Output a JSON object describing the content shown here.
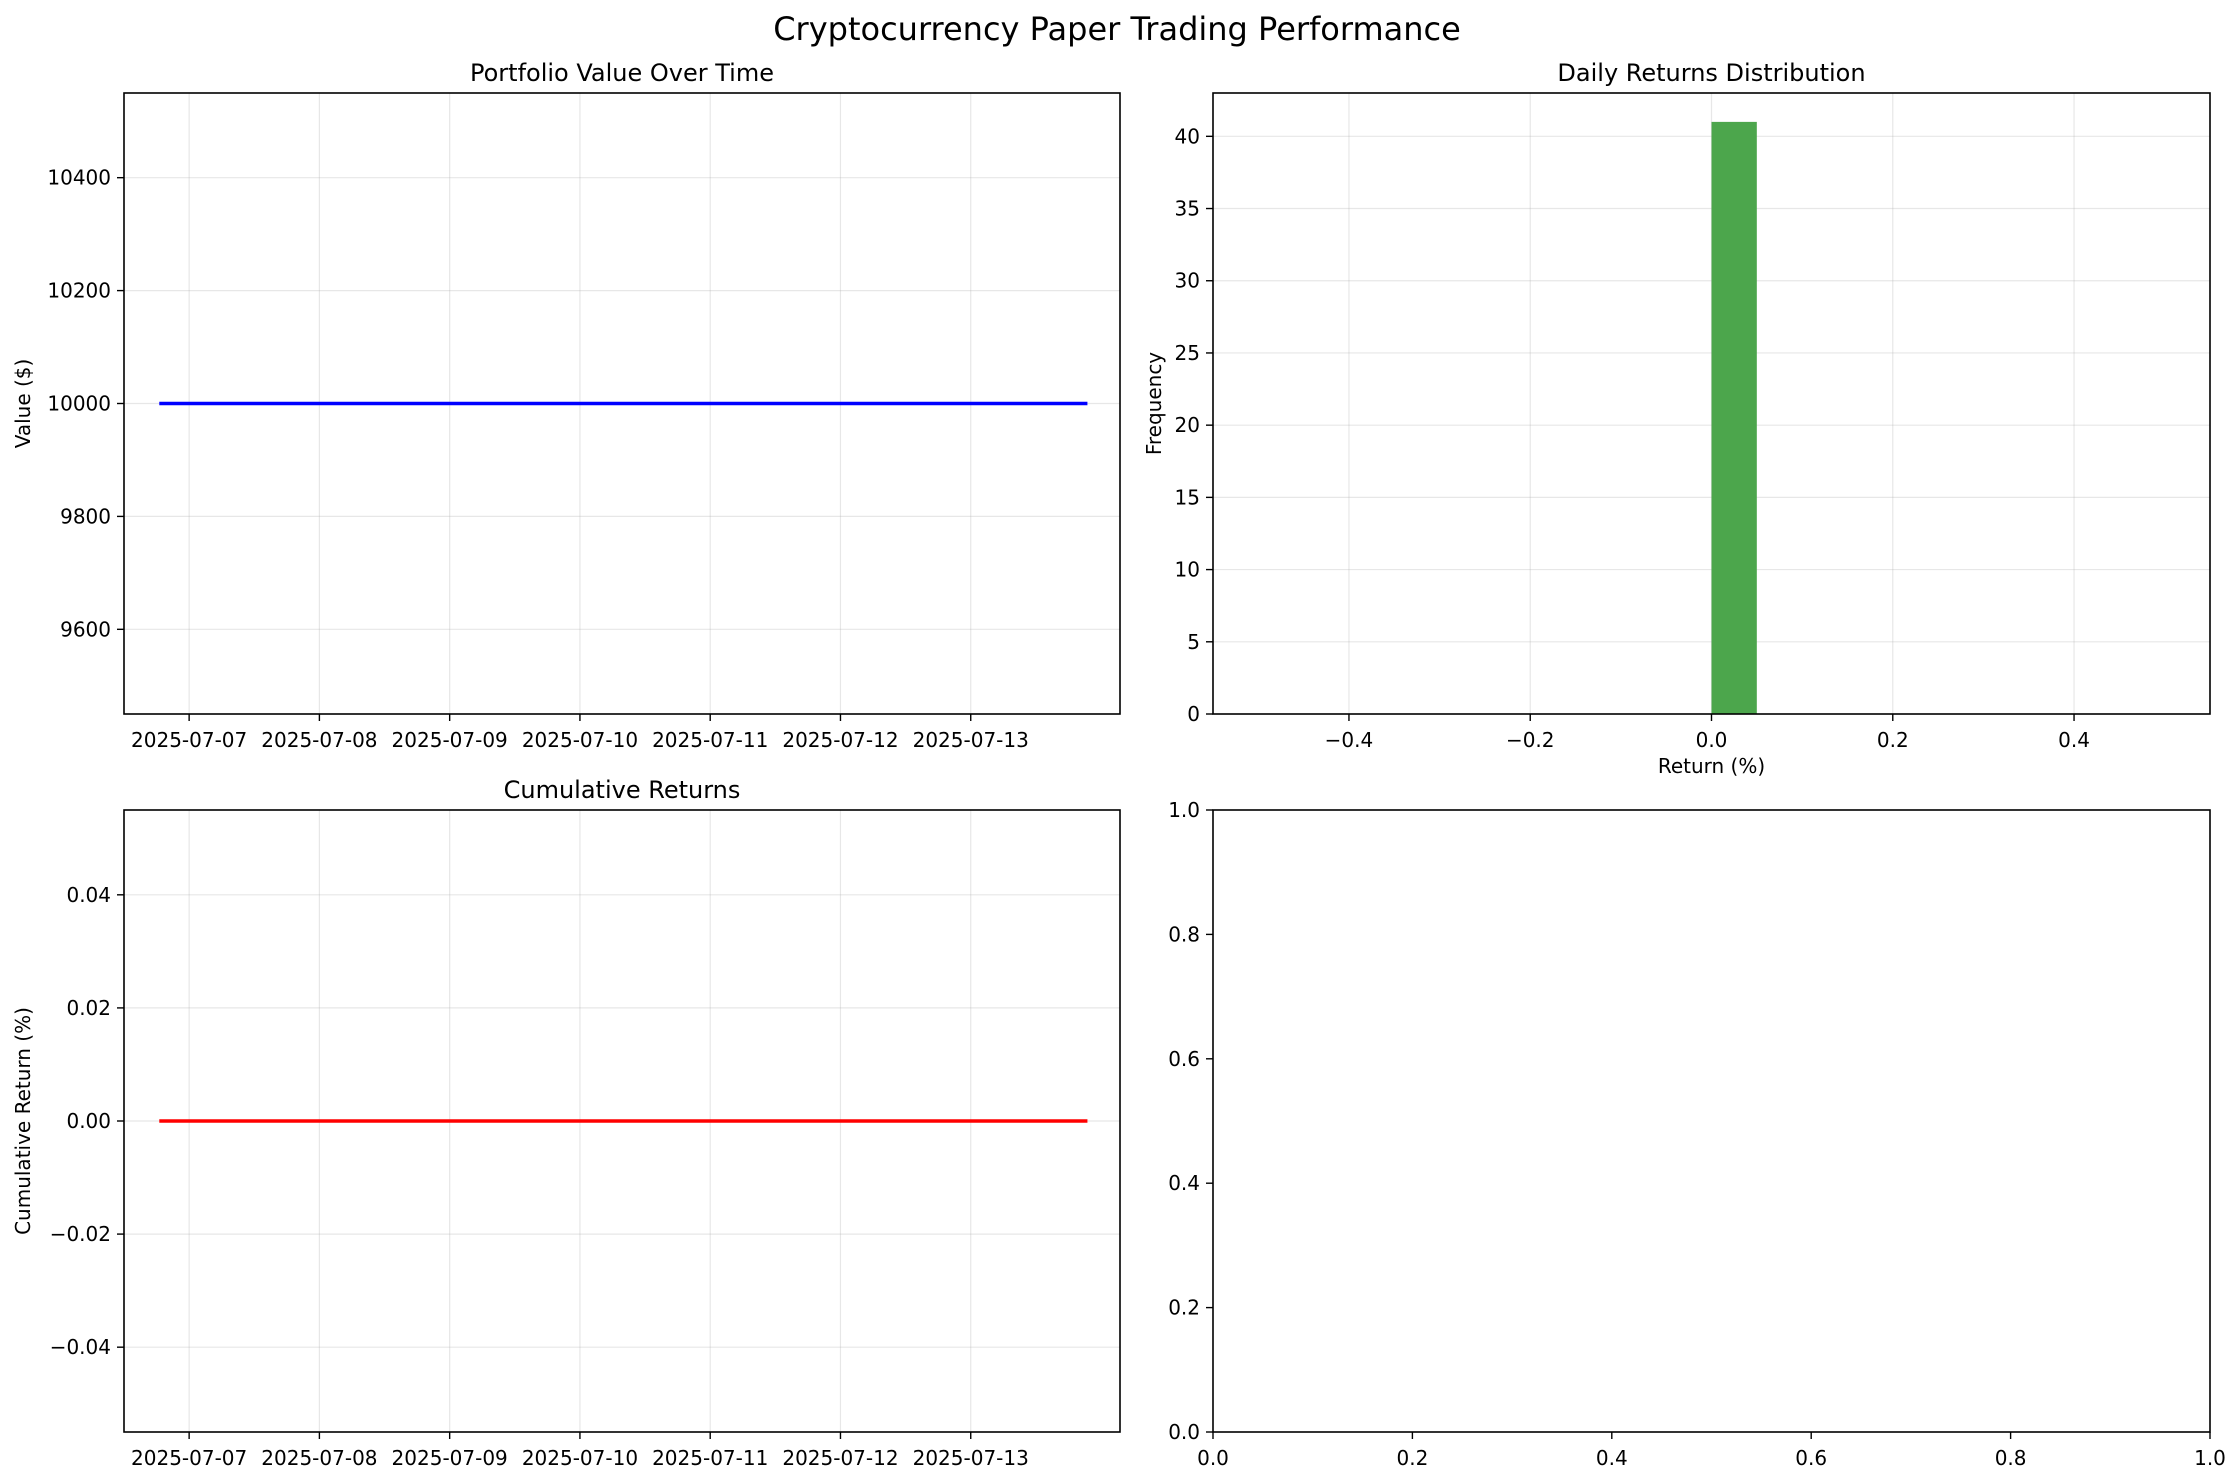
{
  "figure": {
    "title": "Cryptocurrency Paper Trading Performance"
  },
  "chart_data": [
    {
      "type": "line",
      "title": "Portfolio Value Over Time",
      "xlabel": "",
      "ylabel": "Value ($)",
      "x_type": "date",
      "x_ticks": [
        "2025-07-07",
        "2025-07-08",
        "2025-07-09",
        "2025-07-10",
        "2025-07-11",
        "2025-07-12",
        "2025-07-13"
      ],
      "y_ticks": [
        9600,
        9800,
        10000,
        10200,
        10400
      ],
      "xlim": [
        "2025-07-06 12:00",
        "2025-07-14 03:30"
      ],
      "ylim": [
        9450,
        10550
      ],
      "grid": true,
      "series": [
        {
          "color": "#0000ff",
          "points": [
            {
              "x": "2025-07-06 18:30",
              "y": 10000
            },
            {
              "x": "2025-07-13 21:30",
              "y": 10000
            }
          ]
        }
      ]
    },
    {
      "type": "bar",
      "subtype": "histogram",
      "title": "Daily Returns Distribution",
      "xlabel": "Return (%)",
      "ylabel": "Frequency",
      "x_ticks": [
        -0.4,
        -0.2,
        0.0,
        0.2,
        0.4
      ],
      "y_ticks": [
        0,
        5,
        10,
        15,
        20,
        25,
        30,
        35,
        40
      ],
      "xlim": [
        -0.55,
        0.55
      ],
      "ylim": [
        0,
        43
      ],
      "grid": true,
      "color": "#4ca64c",
      "bins": [
        {
          "start": 0.0,
          "end": 0.05,
          "count": 41
        }
      ]
    },
    {
      "type": "line",
      "title": "Cumulative Returns",
      "xlabel": "",
      "ylabel": "Cumulative Return (%)",
      "x_type": "date",
      "x_ticks": [
        "2025-07-07",
        "2025-07-08",
        "2025-07-09",
        "2025-07-10",
        "2025-07-11",
        "2025-07-12",
        "2025-07-13"
      ],
      "y_ticks": [
        -0.04,
        -0.02,
        0.0,
        0.02,
        0.04
      ],
      "y_tick_labels": [
        "−0.04",
        "−0.02",
        "0.00",
        "0.02",
        "0.04"
      ],
      "xlim": [
        "2025-07-06 12:00",
        "2025-07-14 03:30"
      ],
      "ylim": [
        -0.055,
        0.055
      ],
      "grid": true,
      "series": [
        {
          "color": "#ff0000",
          "points": [
            {
              "x": "2025-07-06 18:30",
              "y": 0
            },
            {
              "x": "2025-07-13 21:30",
              "y": 0
            }
          ]
        }
      ]
    },
    {
      "type": "line",
      "title": "",
      "xlabel": "",
      "ylabel": "",
      "x_ticks": [
        0.0,
        0.2,
        0.4,
        0.6,
        0.8,
        1.0
      ],
      "y_ticks": [
        0.0,
        0.2,
        0.4,
        0.6,
        0.8,
        1.0
      ],
      "xlim": [
        0,
        1
      ],
      "ylim": [
        0,
        1
      ],
      "grid": false,
      "series": []
    }
  ]
}
